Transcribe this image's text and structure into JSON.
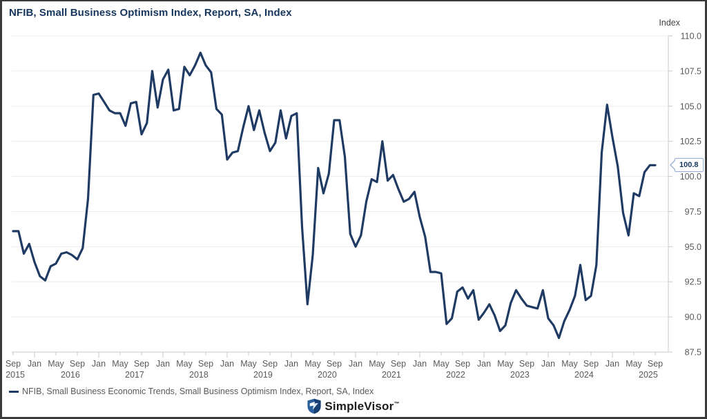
{
  "title": "NFIB, Small Business Optimism Index, Report, SA, Index",
  "axis_unit_label": "Index",
  "legend": {
    "label": "NFIB, Small Business Economic Trends, Small Business Optimism Index, Report, SA, Index"
  },
  "callout": {
    "value": 100.8,
    "label": "100.8"
  },
  "footer": {
    "brand": "SimpleVisor",
    "trademark": "™"
  },
  "colors": {
    "line": "#1f3b63",
    "title_text": "#17365d",
    "grid": "#ececec",
    "axis": "#c9c9c9",
    "tick_text": "#595959",
    "callout_border": "#9db1d4",
    "logo_blue": "#2a5f9e",
    "logo_dark_blue": "#173f73"
  },
  "chart_data": {
    "type": "line",
    "title": "NFIB, Small Business Optimism Index, Report, SA, Index",
    "xlabel": "",
    "ylabel": "Index",
    "ylim": [
      87.5,
      110.0
    ],
    "y_ticks": [
      110.0,
      107.5,
      105.0,
      102.5,
      100.0,
      97.5,
      95.0,
      92.5,
      90.0,
      87.5
    ],
    "grid": "horizontal",
    "legend_position": "bottom-left",
    "x_start_month": "2015-09",
    "x_end_month": "2025-09",
    "x_tick_every_months": 4,
    "x_tick_labels": [
      "Sep",
      "Jan",
      "May",
      "Sep",
      "Jan",
      "May",
      "Sep",
      "Jan",
      "May",
      "Sep",
      "Jan",
      "May",
      "Sep",
      "Jan",
      "May",
      "Sep",
      "Jan",
      "May",
      "Sep",
      "Jan",
      "May",
      "Sep",
      "Jan",
      "May",
      "Sep",
      "Jan",
      "May",
      "Sep",
      "Jan",
      "May",
      "Sep"
    ],
    "x_year_labels": [
      "2015",
      "2016",
      "2017",
      "2018",
      "2019",
      "2020",
      "2021",
      "2022",
      "2023",
      "2024",
      "2025"
    ],
    "series": [
      {
        "name": "NFIB, Small Business Economic Trends, Small Business Optimism Index, Report, SA, Index",
        "last_value": 100.8,
        "monthly_values": [
          96.1,
          96.1,
          94.5,
          95.2,
          93.9,
          92.9,
          92.6,
          93.6,
          93.8,
          94.5,
          94.6,
          94.4,
          94.1,
          94.9,
          98.4,
          105.8,
          105.9,
          105.3,
          104.7,
          104.5,
          104.5,
          103.6,
          105.2,
          105.3,
          103.0,
          103.8,
          107.5,
          104.9,
          106.9,
          107.6,
          104.7,
          104.8,
          107.8,
          107.2,
          107.9,
          108.8,
          107.9,
          107.4,
          104.8,
          104.4,
          101.2,
          101.7,
          101.8,
          103.5,
          105.0,
          103.3,
          104.7,
          103.1,
          101.8,
          102.4,
          104.7,
          102.7,
          104.3,
          104.5,
          96.4,
          90.9,
          94.4,
          100.6,
          98.8,
          100.2,
          104.0,
          104.0,
          101.4,
          95.9,
          95.0,
          95.8,
          98.2,
          99.8,
          99.6,
          102.5,
          99.7,
          100.1,
          99.1,
          98.2,
          98.4,
          98.9,
          97.1,
          95.7,
          93.2,
          93.2,
          93.1,
          89.5,
          89.9,
          91.8,
          92.1,
          91.3,
          91.9,
          89.8,
          90.3,
          90.9,
          90.1,
          89.0,
          89.4,
          91.0,
          91.9,
          91.3,
          90.8,
          90.7,
          90.6,
          91.9,
          89.9,
          89.4,
          88.5,
          89.7,
          90.5,
          91.5,
          93.7,
          91.2,
          91.5,
          93.7,
          101.7,
          105.1,
          102.8,
          100.7,
          97.4,
          95.8,
          98.8,
          98.6,
          100.3,
          100.8,
          100.8
        ]
      }
    ]
  }
}
